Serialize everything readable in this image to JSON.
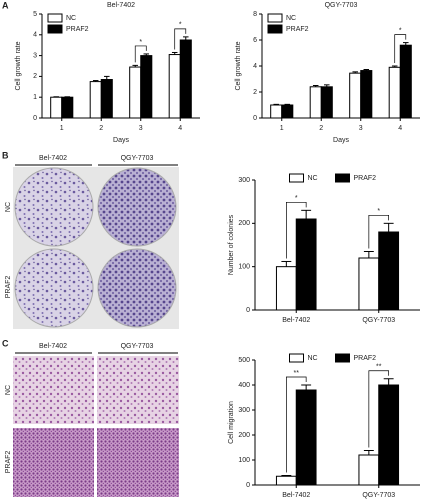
{
  "figure": {
    "panel_labels": [
      "A",
      "B",
      "C"
    ],
    "B_images": {
      "columns": [
        "Bel-7402",
        "QGY-7703"
      ],
      "rows": [
        "NC",
        "PRAF2"
      ]
    },
    "C_images": {
      "columns": [
        "Bel-7402",
        "QGY-7703"
      ],
      "rows": [
        "NC",
        "PRAF2"
      ]
    }
  },
  "chart_data": [
    {
      "type": "bar",
      "title": "Bel-7402",
      "x_label": "Days",
      "y_label": "Cell growth rate",
      "categories": [
        "1",
        "2",
        "3",
        "4"
      ],
      "ylim": [
        0,
        5
      ],
      "yticks": [
        0,
        1,
        2,
        3,
        4,
        5
      ],
      "legend": "upper left",
      "series": [
        {
          "name": "NC",
          "color": "#ffffff",
          "values": [
            1.0,
            1.75,
            2.45,
            3.05
          ],
          "errors": [
            0.02,
            0.05,
            0.08,
            0.1
          ]
        },
        {
          "name": "PRAF2",
          "color": "#000000",
          "values": [
            1.0,
            1.85,
            3.0,
            3.75
          ],
          "errors": [
            0.02,
            0.15,
            0.08,
            0.15
          ]
        }
      ],
      "significance": [
        null,
        null,
        "*",
        "*"
      ]
    },
    {
      "type": "bar",
      "title": "QGY-7703",
      "x_label": "Days",
      "y_label": "Cell growth rate",
      "categories": [
        "1",
        "2",
        "3",
        "4"
      ],
      "ylim": [
        0,
        8
      ],
      "yticks": [
        0,
        2,
        4,
        6,
        8
      ],
      "legend": "upper left",
      "series": [
        {
          "name": "NC",
          "color": "#ffffff",
          "values": [
            1.0,
            2.4,
            3.45,
            3.9
          ],
          "errors": [
            0.05,
            0.1,
            0.1,
            0.1
          ]
        },
        {
          "name": "PRAF2",
          "color": "#000000",
          "values": [
            1.0,
            2.4,
            3.65,
            5.6
          ],
          "errors": [
            0.05,
            0.15,
            0.08,
            0.2
          ]
        }
      ],
      "significance": [
        null,
        null,
        null,
        "*"
      ]
    },
    {
      "type": "bar",
      "y_label": "Number of colonies",
      "categories": [
        "Bel-7402",
        "QGY-7703"
      ],
      "ylim": [
        0,
        300
      ],
      "yticks": [
        0,
        100,
        200,
        300
      ],
      "legend": "upper center",
      "series": [
        {
          "name": "NC",
          "color": "#ffffff",
          "values": [
            100,
            120
          ],
          "errors": [
            12,
            15
          ]
        },
        {
          "name": "PRAF2",
          "color": "#000000",
          "values": [
            210,
            180
          ],
          "errors": [
            20,
            20
          ]
        }
      ],
      "significance": [
        "*",
        "*"
      ]
    },
    {
      "type": "bar",
      "y_label": "Cell migration",
      "categories": [
        "Bel-7402",
        "QGY-7703"
      ],
      "ylim": [
        0,
        500
      ],
      "yticks": [
        0,
        100,
        200,
        300,
        400,
        500
      ],
      "legend": "upper center",
      "series": [
        {
          "name": "NC",
          "color": "#ffffff",
          "values": [
            35,
            120
          ],
          "errors": [
            3,
            18
          ]
        },
        {
          "name": "PRAF2",
          "color": "#000000",
          "values": [
            380,
            400
          ],
          "errors": [
            20,
            25
          ]
        }
      ],
      "significance": [
        "**",
        "**"
      ]
    }
  ]
}
